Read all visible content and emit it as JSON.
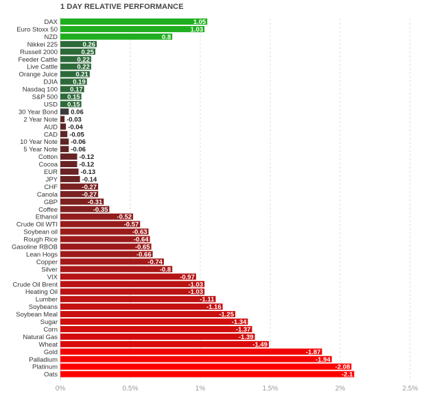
{
  "chart_data": {
    "type": "bar",
    "orientation": "horizontal",
    "title": "1 DAY RELATIVE PERFORMANCE",
    "xlabel": "",
    "ylabel": "",
    "xlim": [
      0,
      2.5
    ],
    "x_ticks": [
      0,
      0.5,
      1,
      1.5,
      2,
      2.5
    ],
    "x_tick_labels": [
      "0%",
      "0.5%",
      "1%",
      "1.5%",
      "2%",
      "2.5%"
    ],
    "bar_length": "absolute value",
    "grid": "vertical dashed",
    "legend": "none",
    "colors": {
      "strong_positive": "#1fae1f",
      "positive": "#2d6a3a",
      "weak_positive": "#3a3a3a",
      "negative": "#5a2a2a",
      "strong_negative": "#ff0000",
      "grid": "#dddddd",
      "axis_label": "#999999",
      "category_label": "#333333"
    },
    "categories": [
      "DAX",
      "Euro Stoxx 50",
      "NZD",
      "Nikkei 225",
      "Russell 2000",
      "Feeder Cattle",
      "Live Cattle",
      "Orange Juice",
      "DJIA",
      "Nasdaq 100",
      "S&P 500",
      "USD",
      "30 Year Bond",
      "2 Year Note",
      "AUD",
      "CAD",
      "10 Year Note",
      "5 Year Note",
      "Cotton",
      "Cocoa",
      "EUR",
      "JPY",
      "CHF",
      "Canola",
      "GBP",
      "Coffee",
      "Ethanol",
      "Crude Oil WTI",
      "Soybean oil",
      "Rough Rice",
      "Gasoline RBOB",
      "Lean Hogs",
      "Copper",
      "Silver",
      "VIX",
      "Crude Oil Brent",
      "Heating Oil",
      "Lumber",
      "Soybeans",
      "Soybean Meal",
      "Sugar",
      "Corn",
      "Natural Gas",
      "Wheat",
      "Gold",
      "Palladium",
      "Platinum",
      "Oats"
    ],
    "values": [
      1.05,
      1.03,
      0.8,
      0.26,
      0.25,
      0.22,
      0.22,
      0.21,
      0.19,
      0.17,
      0.15,
      0.15,
      0.06,
      -0.03,
      -0.04,
      -0.05,
      -0.06,
      -0.06,
      -0.12,
      -0.12,
      -0.13,
      -0.14,
      -0.27,
      -0.27,
      -0.31,
      -0.35,
      -0.52,
      -0.57,
      -0.63,
      -0.64,
      -0.65,
      -0.66,
      -0.74,
      -0.8,
      -0.97,
      -1.03,
      -1.03,
      -1.11,
      -1.16,
      -1.25,
      -1.34,
      -1.37,
      -1.39,
      -1.49,
      -1.87,
      -1.94,
      -2.08,
      -2.1
    ],
    "value_labels": [
      "1.05",
      "1.03",
      "0.8",
      "0.26",
      "0.25",
      "0.22",
      "0.22",
      "0.21",
      "0.19",
      "0.17",
      "0.15",
      "0.15",
      "0.06",
      "-0.03",
      "-0.04",
      "-0.05",
      "-0.06",
      "-0.06",
      "-0.12",
      "-0.12",
      "-0.13",
      "-0.14",
      "-0.27",
      "-0.27",
      "-0.31",
      "-0.35",
      "-0.52",
      "-0.57",
      "-0.63",
      "-0.64",
      "-0.65",
      "-0.66",
      "-0.74",
      "-0.8",
      "-0.97",
      "-1.03",
      "-1.03",
      "-1.11",
      "-1.16",
      "-1.25",
      "-1.34",
      "-1.37",
      "-1.39",
      "-1.49",
      "-1.87",
      "-1.94",
      "-2.08",
      "-2.1"
    ]
  }
}
